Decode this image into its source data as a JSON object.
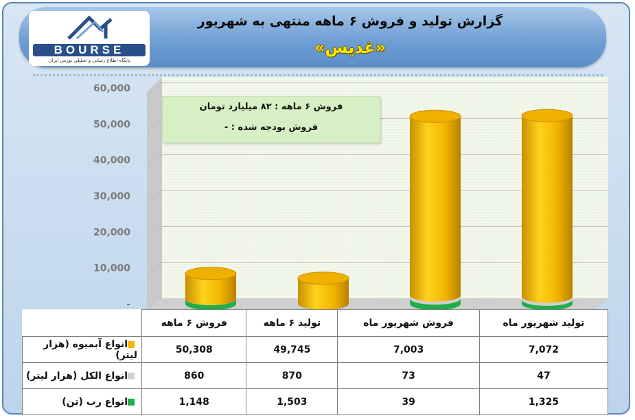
{
  "header": {
    "title": "گزارش تولید و فروش ۶ ماهه منتهی به شهریور",
    "company": "«غدیس»"
  },
  "logo": {
    "brand": "BOURSE",
    "subtitle": "پایگاه اطلاع رسانی و تحلیلی بورس ایران"
  },
  "note": {
    "line1": "فروش ۶ ماهه : ۸۲ میلیارد تومان",
    "line2": "فروش بودجه شده : -"
  },
  "colors": {
    "juice": "#f5b800",
    "alcohol": "#d0d0d0",
    "paste": "#1fae4a"
  },
  "chart_data": {
    "type": "bar",
    "stacked": true,
    "categories": [
      "فروش ۶ ماهه",
      "تولید ۶ ماهه",
      "فروش شهریور ماه",
      "تولید شهریور ماه"
    ],
    "series": [
      {
        "name": "انواع رب (تن)",
        "values": [
          1148,
          1503,
          39,
          1325
        ],
        "color": "#1fae4a"
      },
      {
        "name": "انواع الکل (هزار لیتر)",
        "values": [
          860,
          870,
          73,
          47
        ],
        "color": "#d0d0d0"
      },
      {
        "name": "انواع آبمیوه (هزار لیتر)",
        "values": [
          50308,
          49745,
          7003,
          7072
        ],
        "color": "#f5b800"
      }
    ],
    "yticks": [
      "-",
      "10,000",
      "20,000",
      "30,000",
      "40,000",
      "50,000",
      "60,000"
    ],
    "ylim": [
      0,
      60000
    ],
    "grid": true,
    "legend": "table"
  },
  "table": {
    "rows": [
      {
        "label": "انواع آبمیوه (هزار لیتر)",
        "values": [
          "50,308",
          "49,745",
          "7,003",
          "7,072"
        ],
        "swatch": "#f5b800"
      },
      {
        "label": "انواع الکل (هزار لیتر)",
        "values": [
          "860",
          "870",
          "73",
          "47"
        ],
        "swatch": "#d0d0d0"
      },
      {
        "label": "انواع رب (تن)",
        "values": [
          "1,148",
          "1,503",
          "39",
          "1,325"
        ],
        "swatch": "#1fae4a"
      }
    ]
  }
}
